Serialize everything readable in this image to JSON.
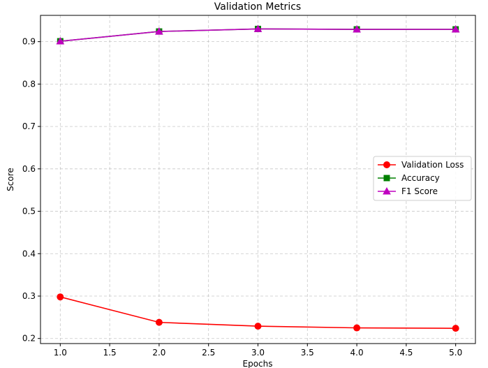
{
  "chart_data": {
    "type": "line",
    "title": "Validation Metrics",
    "xlabel": "Epochs",
    "ylabel": "Score",
    "xlim": [
      0.8,
      5.2
    ],
    "ylim": [
      0.188,
      0.962
    ],
    "xticks": [
      1.0,
      1.5,
      2.0,
      2.5,
      3.0,
      3.5,
      4.0,
      4.5,
      5.0
    ],
    "yticks": [
      0.2,
      0.3,
      0.4,
      0.5,
      0.6,
      0.7,
      0.8,
      0.9
    ],
    "xtick_labels": [
      "1.0",
      "1.5",
      "2.0",
      "2.5",
      "3.0",
      "3.5",
      "4.0",
      "4.5",
      "5.0"
    ],
    "ytick_labels": [
      "0.2",
      "0.3",
      "0.4",
      "0.5",
      "0.6",
      "0.7",
      "0.8",
      "0.9"
    ],
    "grid": true,
    "legend_position": "center-right",
    "x": [
      1,
      2,
      3,
      4,
      5
    ],
    "series": [
      {
        "name": "Validation Loss",
        "values": [
          0.298,
          0.238,
          0.229,
          0.225,
          0.224
        ],
        "color": "#ff0000",
        "marker": "circle"
      },
      {
        "name": "Accuracy",
        "values": [
          0.901,
          0.924,
          0.93,
          0.929,
          0.929
        ],
        "color": "#008000",
        "marker": "square"
      },
      {
        "name": "F1 Score",
        "values": [
          0.901,
          0.924,
          0.93,
          0.929,
          0.929
        ],
        "color": "#bf00bf",
        "marker": "triangle"
      }
    ]
  }
}
